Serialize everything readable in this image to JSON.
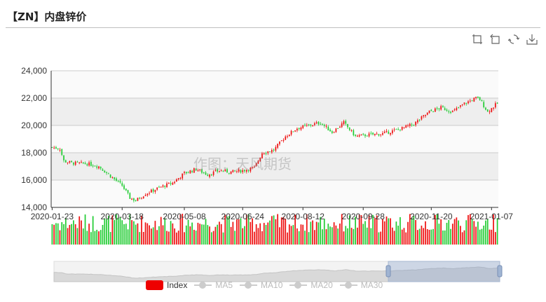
{
  "title": "【ZN】内盘锌价",
  "watermark": "作图：天风期货",
  "toolbox": [
    {
      "name": "zoom-icon"
    },
    {
      "name": "zoom-reset-icon"
    },
    {
      "name": "restore-icon"
    },
    {
      "name": "save-image-icon"
    }
  ],
  "colors": {
    "up": "#ee1111",
    "down": "#22cc33",
    "grid_band": "#eeeeee",
    "axis": "#333333"
  },
  "legend": [
    {
      "label": "Index",
      "active": true,
      "color": "#ee0000"
    },
    {
      "label": "MA5",
      "active": false
    },
    {
      "label": "MA10",
      "active": false
    },
    {
      "label": "MA20",
      "active": false
    },
    {
      "label": "MA30",
      "active": false
    }
  ],
  "chart_data": {
    "type": "candlestick",
    "title": "【ZN】内盘锌价",
    "y_ticks": [
      "24,000",
      "22,000",
      "20,000",
      "18,000",
      "16,000",
      "14,000"
    ],
    "ylim": [
      14000,
      24000
    ],
    "x_ticks": [
      "2020-01-23",
      "2020-03-18",
      "2020-05-08",
      "2020-06-24",
      "2020-08-12",
      "2020-09-28",
      "2020-11-20",
      "2021-01-07"
    ],
    "x_tick_positions": [
      0,
      36,
      68,
      98,
      129,
      160,
      195,
      226
    ],
    "trading_days": 230,
    "close_path": [
      [
        0,
        18400
      ],
      [
        4,
        18300
      ],
      [
        6,
        17400
      ],
      [
        10,
        17250
      ],
      [
        18,
        17200
      ],
      [
        24,
        17000
      ],
      [
        30,
        16300
      ],
      [
        36,
        15600
      ],
      [
        40,
        14700
      ],
      [
        43,
        14500
      ],
      [
        48,
        15000
      ],
      [
        56,
        15500
      ],
      [
        62,
        15800
      ],
      [
        68,
        16500
      ],
      [
        74,
        16800
      ],
      [
        80,
        16400
      ],
      [
        86,
        16700
      ],
      [
        92,
        16600
      ],
      [
        98,
        16700
      ],
      [
        104,
        16900
      ],
      [
        108,
        18000
      ],
      [
        114,
        18200
      ],
      [
        120,
        19200
      ],
      [
        126,
        19800
      ],
      [
        132,
        20000
      ],
      [
        138,
        20200
      ],
      [
        144,
        19500
      ],
      [
        150,
        20200
      ],
      [
        156,
        19200
      ],
      [
        162,
        19300
      ],
      [
        170,
        19400
      ],
      [
        178,
        19700
      ],
      [
        186,
        20100
      ],
      [
        194,
        21000
      ],
      [
        200,
        21300
      ],
      [
        206,
        21000
      ],
      [
        212,
        21600
      ],
      [
        218,
        22000
      ],
      [
        220,
        21900
      ],
      [
        224,
        21000
      ],
      [
        228,
        21500
      ],
      [
        229,
        21600
      ]
    ],
    "volume_note": "volume bars colored by candle direction",
    "dataZoom": {
      "start_fraction": 0.75,
      "end_fraction": 1.0
    }
  }
}
